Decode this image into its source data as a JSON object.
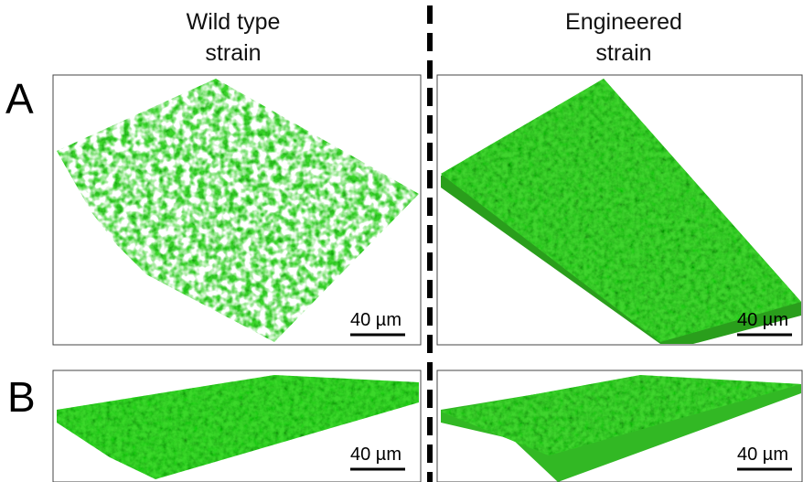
{
  "columns": [
    {
      "title": [
        "Wild type",
        "strain"
      ]
    },
    {
      "title": [
        "Engineered",
        "strain"
      ]
    }
  ],
  "rows": [
    {
      "label": "A"
    },
    {
      "label": "B"
    }
  ],
  "panels": [
    {
      "scale_bar": "40 µm"
    },
    {
      "scale_bar": "40 µm"
    },
    {
      "scale_bar": "40 µm"
    },
    {
      "scale_bar": "40 µm"
    }
  ]
}
